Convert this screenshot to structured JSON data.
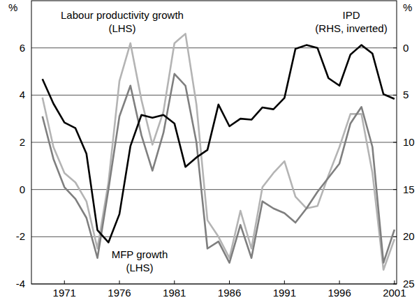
{
  "chart_data": {
    "type": "line",
    "ylabel": "%",
    "y2label": "%",
    "x": [
      1969,
      1970,
      1971,
      1972,
      1973,
      1974,
      1975,
      1976,
      1977,
      1978,
      1979,
      1980,
      1981,
      1982,
      1983,
      1984,
      1985,
      1986,
      1987,
      1988,
      1989,
      1990,
      1991,
      1992,
      1993,
      1994,
      1995,
      1996,
      1997,
      1998,
      1999,
      2000,
      2001
    ],
    "xlim": [
      1968,
      2001.2
    ],
    "xticks": [
      1971,
      1976,
      1981,
      1986,
      1991,
      1996,
      2001
    ],
    "ylim": [
      -4,
      8
    ],
    "yticks": [
      -4,
      -2,
      0,
      2,
      4,
      6
    ],
    "y2lim": [
      25,
      -5
    ],
    "y2ticks": [
      0,
      5,
      10,
      15,
      20,
      25
    ],
    "grid": true,
    "series": [
      {
        "name": "Labour productivity growth",
        "color": "#b4b4b4",
        "type": "line",
        "values": [
          3.9,
          1.8,
          0.7,
          0.3,
          -0.5,
          -2.5,
          0.3,
          4.6,
          6.2,
          3.8,
          1.9,
          3.3,
          6.2,
          6.6,
          3.6,
          -1.3,
          -2.0,
          -2.9,
          -0.9,
          -2.5,
          0.1,
          0.7,
          1.2,
          -0.3,
          -0.8,
          -0.7,
          0.6,
          1.8,
          3.2,
          3.2,
          0.7,
          -3.4,
          -2.1
        ]
      },
      {
        "name": "MFP growth",
        "color": "#7f7f7f",
        "type": "line",
        "values": [
          3.1,
          1.3,
          0.1,
          -0.4,
          -1.2,
          -2.9,
          0.0,
          3.1,
          4.4,
          2.3,
          0.8,
          2.4,
          4.9,
          4.4,
          2.0,
          -2.5,
          -2.2,
          -3.1,
          -1.5,
          -2.9,
          -0.5,
          -0.8,
          -1.0,
          -1.4,
          -0.8,
          -0.1,
          0.5,
          1.1,
          2.8,
          3.5,
          1.8,
          -3.1,
          -1.7
        ]
      },
      {
        "name": "IPD",
        "color": "#000000",
        "type": "line",
        "axis": "y2",
        "values": [
          3.3,
          5.9,
          7.9,
          8.5,
          11.2,
          19.3,
          20.6,
          17.6,
          10.4,
          7.1,
          7.4,
          7.1,
          8.0,
          12.6,
          11.6,
          10.8,
          6.0,
          8.3,
          7.5,
          7.6,
          6.3,
          6.5,
          5.3,
          0.1,
          -0.3,
          0.0,
          3.2,
          4.0,
          0.7,
          -0.3,
          0.6,
          4.9,
          5.4
        ]
      }
    ],
    "annotations": [
      {
        "series": 0,
        "lines": [
          "Labour productivity growth",
          "(LHS)"
        ]
      },
      {
        "series": 2,
        "lines": [
          "IPD",
          "(RHS, inverted)"
        ]
      },
      {
        "series": 1,
        "lines": [
          "MFP growth",
          "(LHS)"
        ]
      }
    ]
  }
}
